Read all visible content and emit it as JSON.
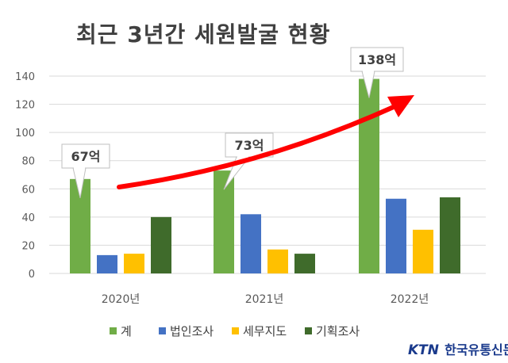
{
  "chart_data": {
    "type": "bar",
    "title": "최근 3년간 세원발굴 현황",
    "categories": [
      "2020년",
      "2021년",
      "2022년"
    ],
    "series": [
      {
        "name": "계",
        "values": [
          67,
          73,
          138
        ],
        "color": "#70ad47"
      },
      {
        "name": "법인조사",
        "values": [
          13,
          42,
          53
        ],
        "color": "#4472c4"
      },
      {
        "name": "세무지도",
        "values": [
          14,
          17,
          31
        ],
        "color": "#ffc000"
      },
      {
        "name": "기획조사",
        "values": [
          40,
          14,
          54
        ],
        "color": "#3f6b2b"
      }
    ],
    "ylim": [
      0,
      140
    ],
    "yticks": [
      "0",
      "20",
      "40",
      "60",
      "80",
      "100",
      "120",
      "140"
    ],
    "callouts": [
      "67억",
      "73억",
      "138억"
    ],
    "grid": true,
    "legend_position": "bottom",
    "trend_arrow_color": "#ff0000"
  },
  "logo": {
    "ktn": "KTN",
    "name": "한국유통신문"
  }
}
